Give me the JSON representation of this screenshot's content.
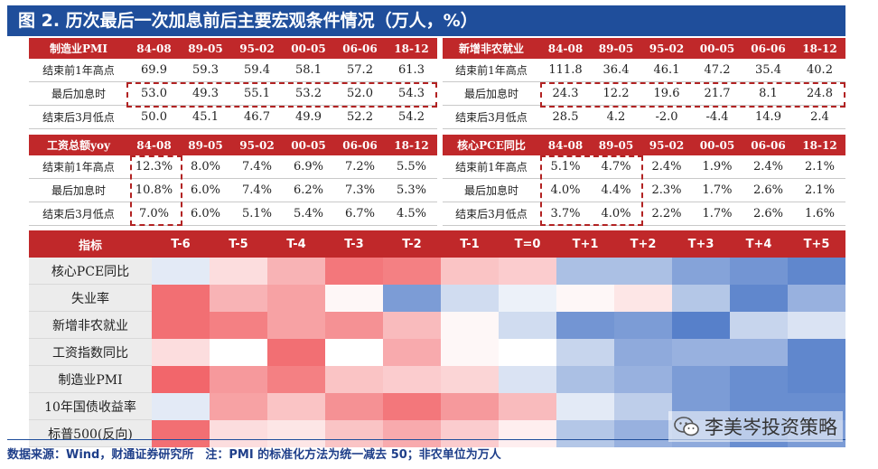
{
  "title": "图 2. 历次最后一次加息前后主要宏观条件情况（万人，%）",
  "tables": [
    {
      "header": [
        "制造业PMI",
        "84-08",
        "89-05",
        "95-02",
        "00-05",
        "06-06",
        "18-12"
      ],
      "rows": [
        [
          "结束前1年高点",
          "69.9",
          "59.3",
          "59.4",
          "58.1",
          "57.2",
          "61.3"
        ],
        [
          "最后加息时",
          "53.0",
          "49.3",
          "55.1",
          "53.2",
          "52.0",
          "54.3"
        ],
        [
          "结束后3月低点",
          "50.0",
          "45.1",
          "46.7",
          "49.9",
          "52.2",
          "54.2"
        ]
      ]
    },
    {
      "header": [
        "新增非农就业",
        "84-08",
        "89-05",
        "95-02",
        "00-05",
        "06-06",
        "18-12"
      ],
      "rows": [
        [
          "结束前1年高点",
          "111.8",
          "36.4",
          "46.1",
          "47.2",
          "35.4",
          "40.2"
        ],
        [
          "最后加息时",
          "24.3",
          "12.2",
          "19.6",
          "21.7",
          "8.1",
          "24.8"
        ],
        [
          "结束后3月低点",
          "28.5",
          "4.2",
          "-2.0",
          "-4.4",
          "14.9",
          "2.4"
        ]
      ]
    },
    {
      "header": [
        "工资总额yoy",
        "84-08",
        "89-05",
        "95-02",
        "00-05",
        "06-06",
        "18-12"
      ],
      "rows": [
        [
          "结束前1年高点",
          "12.3%",
          "8.0%",
          "7.4%",
          "6.9%",
          "7.2%",
          "5.5%"
        ],
        [
          "最后加息时",
          "10.8%",
          "6.0%",
          "7.4%",
          "6.2%",
          "7.3%",
          "5.3%"
        ],
        [
          "结束后3月低点",
          "7.0%",
          "6.0%",
          "5.1%",
          "5.4%",
          "6.7%",
          "4.5%"
        ]
      ]
    },
    {
      "header": [
        "核心PCE同比",
        "84-08",
        "89-05",
        "95-02",
        "00-05",
        "06-06",
        "18-12"
      ],
      "rows": [
        [
          "结束前1年高点",
          "5.1%",
          "4.7%",
          "2.4%",
          "1.9%",
          "2.4%",
          "2.1%"
        ],
        [
          "最后加息时",
          "4.0%",
          "4.4%",
          "2.3%",
          "1.7%",
          "2.6%",
          "2.1%"
        ],
        [
          "结束后3月低点",
          "3.7%",
          "4.0%",
          "2.2%",
          "1.7%",
          "2.6%",
          "1.6%"
        ]
      ]
    }
  ],
  "heatmap": {
    "corner": "指标",
    "columns": [
      "T-6",
      "T-5",
      "T-4",
      "T-3",
      "T-2",
      "T-1",
      "T=0",
      "T+1",
      "T+2",
      "T+3",
      "T+4",
      "T+5"
    ],
    "rows": [
      {
        "label": "核心PCE同比",
        "values": [
          -0.15,
          0.2,
          0.45,
          0.8,
          0.75,
          0.35,
          0.3,
          -0.45,
          -0.45,
          -0.65,
          -0.75,
          -0.85
        ]
      },
      {
        "label": "失业率",
        "values": [
          0.85,
          0.45,
          0.55,
          0.05,
          -0.7,
          -0.25,
          -0.1,
          0.05,
          0.15,
          -0.4,
          -0.85,
          -0.55
        ]
      },
      {
        "label": "新增非农就业",
        "values": [
          0.85,
          0.75,
          0.55,
          0.65,
          0.4,
          0.05,
          -0.25,
          -0.75,
          -0.7,
          -0.9,
          -0.3,
          -0.2
        ]
      },
      {
        "label": "工资指数同比",
        "values": [
          0.2,
          0.0,
          0.85,
          0.0,
          0.5,
          0.05,
          0.0,
          -0.3,
          -0.6,
          -0.55,
          -0.55,
          -0.85
        ]
      },
      {
        "label": "制造业PMI",
        "values": [
          0.9,
          0.6,
          0.75,
          0.35,
          0.3,
          0.25,
          -0.2,
          -0.45,
          -0.55,
          -0.7,
          -0.8,
          -0.85
        ]
      },
      {
        "label": "10年国债收益率",
        "values": [
          -0.15,
          0.55,
          0.35,
          0.65,
          0.8,
          0.6,
          0.4,
          -0.15,
          -0.35,
          -0.7,
          -0.8,
          -0.8
        ]
      },
      {
        "label": "标普500(反向)",
        "values": [
          0.85,
          0.2,
          0.15,
          0.35,
          0.5,
          0.3,
          0.1,
          -0.4,
          -0.55,
          -0.6,
          -0.8,
          -0.7
        ]
      }
    ]
  },
  "source_note": "数据来源：Wind，财通证券研究所　注：PMI 的标准化方法为统一减去 50；非农单位为万人",
  "watermark": "李美岑投资策略",
  "colors": {
    "title_bg": "#1f4e9b",
    "header_red": "#c0282a",
    "dash": "#b22222",
    "heat_neg": "#4472c4",
    "heat_pos": "#f0555a"
  }
}
